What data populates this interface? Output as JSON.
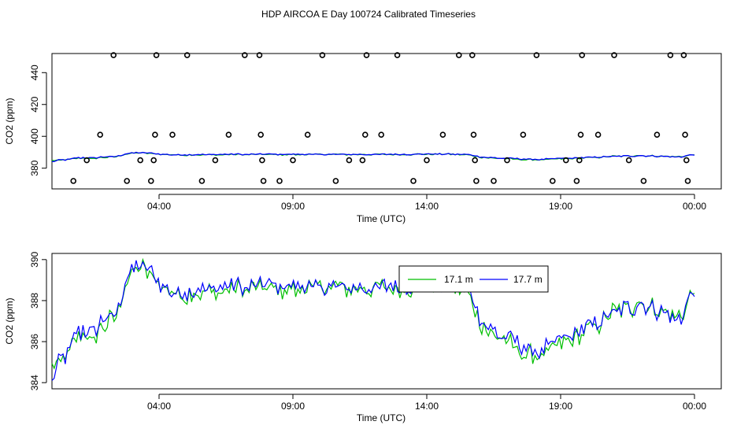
{
  "title": "HDP AIRCOA E  Day 100724  Calibrated Timeseries",
  "chart_data": [
    {
      "type": "scatter",
      "xlabel": "Time (UTC)",
      "ylabel": "CO2 (ppm)",
      "xlim": [
        0,
        25
      ],
      "ylim": [
        367,
        452
      ],
      "x_ticks": [
        {
          "value": 4,
          "label": "04:00"
        },
        {
          "value": 9,
          "label": "09:00"
        },
        {
          "value": 14,
          "label": "14:00"
        },
        {
          "value": 19,
          "label": "19:00"
        },
        {
          "value": 24,
          "label": "00:00"
        }
      ],
      "y_ticks": [
        {
          "value": 380,
          "label": "380"
        },
        {
          "value": 400,
          "label": "400"
        },
        {
          "value": 420,
          "label": "420"
        },
        {
          "value": 440,
          "label": "440"
        }
      ],
      "calibration_points": [
        [
          0.8,
          372
        ],
        [
          1.3,
          385
        ],
        [
          1.8,
          401
        ],
        [
          2.3,
          451
        ],
        [
          2.8,
          372
        ],
        [
          3.3,
          385
        ],
        [
          3.7,
          372
        ],
        [
          3.8,
          385
        ],
        [
          3.85,
          401
        ],
        [
          3.9,
          451
        ],
        [
          4.5,
          401
        ],
        [
          5.05,
          451
        ],
        [
          5.6,
          372
        ],
        [
          6.1,
          385
        ],
        [
          6.6,
          401
        ],
        [
          7.2,
          451
        ],
        [
          7.75,
          451
        ],
        [
          7.8,
          401
        ],
        [
          7.85,
          385
        ],
        [
          7.9,
          372
        ],
        [
          8.5,
          372
        ],
        [
          9.0,
          385
        ],
        [
          9.55,
          401
        ],
        [
          10.1,
          451
        ],
        [
          10.6,
          372
        ],
        [
          11.1,
          385
        ],
        [
          11.6,
          385
        ],
        [
          11.7,
          401
        ],
        [
          11.75,
          451
        ],
        [
          12.3,
          401
        ],
        [
          12.9,
          451
        ],
        [
          13.5,
          372
        ],
        [
          14.0,
          385
        ],
        [
          14.6,
          401
        ],
        [
          15.2,
          451
        ],
        [
          15.7,
          451
        ],
        [
          15.75,
          401
        ],
        [
          15.8,
          385
        ],
        [
          15.85,
          372
        ],
        [
          16.5,
          372
        ],
        [
          17.0,
          385
        ],
        [
          17.6,
          401
        ],
        [
          18.1,
          451
        ],
        [
          18.7,
          372
        ],
        [
          19.2,
          385
        ],
        [
          19.6,
          372
        ],
        [
          19.7,
          385
        ],
        [
          19.75,
          401
        ],
        [
          19.8,
          451
        ],
        [
          20.4,
          401
        ],
        [
          21.0,
          451
        ],
        [
          21.55,
          385
        ],
        [
          22.1,
          372
        ],
        [
          22.6,
          401
        ],
        [
          23.1,
          451
        ],
        [
          23.6,
          451
        ],
        [
          23.65,
          401
        ],
        [
          23.7,
          385
        ],
        [
          23.75,
          372
        ]
      ],
      "series": [
        {
          "name": "17.1 m",
          "color": "#00bf00"
        },
        {
          "name": "17.7 m",
          "color": "#0000ff"
        }
      ]
    },
    {
      "type": "line",
      "xlabel": "Time (UTC)",
      "ylabel": "CO2 (ppm)",
      "xlim": [
        0,
        25
      ],
      "ylim": [
        383.7,
        390.3
      ],
      "x_ticks": [
        {
          "value": 4,
          "label": "04:00"
        },
        {
          "value": 9,
          "label": "09:00"
        },
        {
          "value": 14,
          "label": "14:00"
        },
        {
          "value": 19,
          "label": "19:00"
        },
        {
          "value": 24,
          "label": "00:00"
        }
      ],
      "y_ticks": [
        {
          "value": 384,
          "label": "384"
        },
        {
          "value": 386,
          "label": "386"
        },
        {
          "value": 388,
          "label": "388"
        },
        {
          "value": 390,
          "label": "390"
        }
      ],
      "legend_position": "top-center",
      "series": [
        {
          "name": "17.1 m",
          "color": "#00bf00",
          "anchors": [
            [
              0.0,
              384.6
            ],
            [
              0.3,
              385.0
            ],
            [
              0.6,
              385.3
            ],
            [
              0.9,
              386.1
            ],
            [
              1.2,
              386.4
            ],
            [
              1.5,
              386.0
            ],
            [
              1.8,
              386.7
            ],
            [
              2.1,
              387.0
            ],
            [
              2.4,
              387.0
            ],
            [
              2.7,
              388.5
            ],
            [
              3.0,
              389.4
            ],
            [
              3.3,
              389.6
            ],
            [
              3.6,
              389.4
            ],
            [
              3.9,
              389.0
            ],
            [
              4.2,
              388.6
            ],
            [
              4.5,
              388.3
            ],
            [
              5.0,
              388.3
            ],
            [
              6.0,
              388.5
            ],
            [
              7.0,
              388.6
            ],
            [
              7.5,
              388.6
            ],
            [
              8.0,
              388.7
            ],
            [
              9.0,
              388.5
            ],
            [
              10.0,
              388.7
            ],
            [
              11.0,
              388.6
            ],
            [
              12.0,
              388.5
            ],
            [
              12.5,
              388.6
            ],
            [
              13.0,
              388.6
            ],
            [
              14.0,
              388.8
            ],
            [
              15.0,
              388.7
            ],
            [
              15.5,
              388.4
            ],
            [
              16.0,
              386.9
            ],
            [
              16.5,
              386.4
            ],
            [
              17.0,
              386.0
            ],
            [
              17.5,
              385.6
            ],
            [
              18.0,
              385.2
            ],
            [
              18.5,
              385.4
            ],
            [
              19.0,
              385.9
            ],
            [
              19.5,
              386.2
            ],
            [
              20.0,
              386.5
            ],
            [
              20.5,
              386.9
            ],
            [
              21.0,
              387.5
            ],
            [
              21.5,
              387.5
            ],
            [
              22.0,
              388.0
            ],
            [
              22.5,
              387.6
            ],
            [
              23.0,
              387.4
            ],
            [
              23.5,
              387.2
            ],
            [
              24.0,
              388.6
            ]
          ],
          "noise": 0.5
        },
        {
          "name": "17.7 m",
          "color": "#0000ff",
          "anchors": [
            [
              0.0,
              384.2
            ],
            [
              0.3,
              385.0
            ],
            [
              0.6,
              385.4
            ],
            [
              0.9,
              386.3
            ],
            [
              1.2,
              386.6
            ],
            [
              1.5,
              386.3
            ],
            [
              1.8,
              386.9
            ],
            [
              2.1,
              387.2
            ],
            [
              2.4,
              387.2
            ],
            [
              2.7,
              388.7
            ],
            [
              3.0,
              389.5
            ],
            [
              3.3,
              389.7
            ],
            [
              3.6,
              389.5
            ],
            [
              3.9,
              389.0
            ],
            [
              4.2,
              388.7
            ],
            [
              4.5,
              388.4
            ],
            [
              5.0,
              388.4
            ],
            [
              6.0,
              388.6
            ],
            [
              7.0,
              388.7
            ],
            [
              7.5,
              388.7
            ],
            [
              8.0,
              388.8
            ],
            [
              9.0,
              388.6
            ],
            [
              10.0,
              388.7
            ],
            [
              11.0,
              388.7
            ],
            [
              12.0,
              388.6
            ],
            [
              12.5,
              388.7
            ],
            [
              13.0,
              388.7
            ],
            [
              14.0,
              388.9
            ],
            [
              15.0,
              388.8
            ],
            [
              15.5,
              388.6
            ],
            [
              16.0,
              387.2
            ],
            [
              16.5,
              386.6
            ],
            [
              17.0,
              386.2
            ],
            [
              17.5,
              385.9
            ],
            [
              18.0,
              385.5
            ],
            [
              18.5,
              385.7
            ],
            [
              19.0,
              386.1
            ],
            [
              19.5,
              386.4
            ],
            [
              20.0,
              386.7
            ],
            [
              20.5,
              387.0
            ],
            [
              21.0,
              387.5
            ],
            [
              21.5,
              387.6
            ],
            [
              22.0,
              387.8
            ],
            [
              22.5,
              387.6
            ],
            [
              23.0,
              387.3
            ],
            [
              23.5,
              387.1
            ],
            [
              24.0,
              388.7
            ]
          ],
          "noise": 0.45
        }
      ]
    }
  ]
}
